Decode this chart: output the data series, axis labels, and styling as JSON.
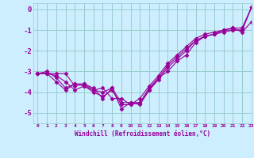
{
  "xlabel": "Windchill (Refroidissement éolien,°C)",
  "bg_color": "#cceeff",
  "grid_color": "#99cccc",
  "line_color": "#990099",
  "xlim": [
    -0.5,
    23.0
  ],
  "ylim": [
    -5.5,
    0.3
  ],
  "xticks": [
    0,
    1,
    2,
    3,
    4,
    5,
    6,
    7,
    8,
    9,
    10,
    11,
    12,
    13,
    14,
    15,
    16,
    17,
    18,
    19,
    20,
    21,
    22,
    23
  ],
  "yticks": [
    0,
    -1,
    -2,
    -3,
    -4,
    -5
  ],
  "series": [
    [
      -3.1,
      -3.1,
      -3.1,
      -3.1,
      -3.7,
      -3.6,
      -3.8,
      -4.3,
      -3.8,
      -4.8,
      -4.5,
      -4.5,
      -3.8,
      -3.3,
      -3.0,
      -2.5,
      -2.2,
      -1.6,
      -1.3,
      -1.2,
      -1.1,
      -1.0,
      -1.0,
      0.1
    ],
    [
      -3.1,
      -3.1,
      -3.2,
      -3.5,
      -3.9,
      -3.7,
      -4.0,
      -4.2,
      -3.9,
      -4.6,
      -4.6,
      -4.5,
      -3.9,
      -3.4,
      -2.8,
      -2.4,
      -2.0,
      -1.5,
      -1.3,
      -1.2,
      -1.0,
      -1.0,
      -1.0,
      0.1
    ],
    [
      -3.1,
      -3.1,
      -3.5,
      -3.9,
      -3.6,
      -3.6,
      -3.9,
      -3.8,
      -4.3,
      -4.3,
      -4.6,
      -4.3,
      -3.7,
      -3.2,
      -2.6,
      -2.2,
      -1.8,
      -1.4,
      -1.2,
      -1.1,
      -1.0,
      -0.9,
      -0.9,
      0.1
    ],
    [
      -3.1,
      -3.0,
      -3.3,
      -3.8,
      -3.6,
      -3.7,
      -3.9,
      -4.0,
      -3.8,
      -4.5,
      -4.5,
      -4.6,
      -3.9,
      -3.3,
      -2.7,
      -2.3,
      -1.9,
      -1.5,
      -1.3,
      -1.2,
      -1.0,
      -0.9,
      -1.1,
      -0.6
    ]
  ],
  "marker": "D",
  "markersize": 2.5,
  "linewidth": 0.8
}
